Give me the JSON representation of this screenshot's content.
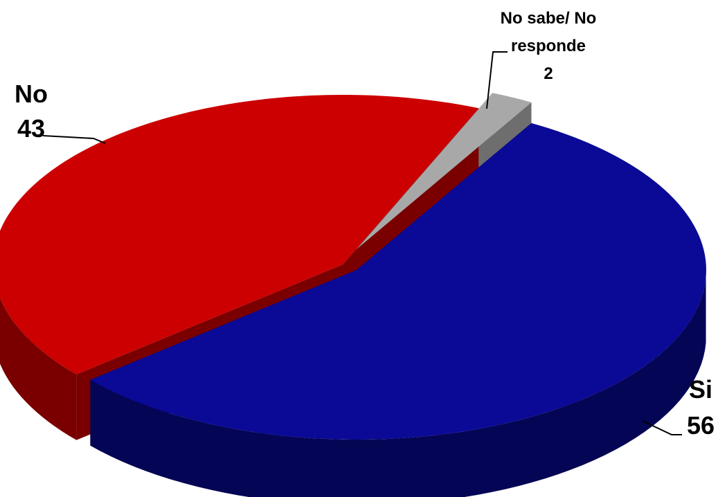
{
  "chart_data": {
    "type": "pie",
    "style": "3d-exploded",
    "slices": [
      {
        "label": "Si",
        "value": 56,
        "color": "#0a0a96",
        "side": "#050555"
      },
      {
        "label": "No",
        "value": 43,
        "color": "#cc0000",
        "side": "#7a0000"
      },
      {
        "label": "No sabe/ No responde",
        "label_lines": [
          "No sabe/ No",
          "responde"
        ],
        "value": 2,
        "color": "#a8a8a8",
        "side": "#6e6e6e"
      }
    ]
  }
}
